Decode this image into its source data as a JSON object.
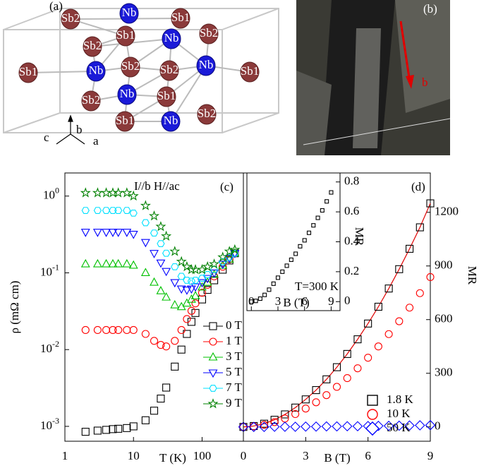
{
  "panel_a": {
    "label": "(a)",
    "atoms": [
      "Sb2",
      "Nb",
      "Sb1",
      "Sb1",
      "Sb2",
      "Nb",
      "Sb2",
      "Sb1",
      "Nb",
      "Sb2",
      "Sb2",
      "Nb",
      "Sb1",
      "Sb2",
      "Nb",
      "Sb1",
      "Sb1",
      "Nb",
      "Sb2"
    ],
    "axes": [
      "c",
      "b",
      "a"
    ]
  },
  "panel_b": {
    "label": "(b)",
    "arrow_label": "b"
  },
  "chart_data": [
    {
      "type": "scatter",
      "xlabel": "T (K)",
      "ylabel": "ρ (mΩ cm)",
      "xscale": "log",
      "yscale": "log",
      "legend": "center right",
      "annotations": [
        "I//b H//ac",
        "(c)"
      ],
      "xlim": [
        1,
        400
      ],
      "xticks": [
        1,
        10,
        100
      ],
      "ylim": [
        0.00064,
        2
      ],
      "yticks": [
        {
          "value": 1,
          "label": "10^0"
        },
        {
          "value": 0.1,
          "label": "10^-1"
        },
        {
          "value": 0.01,
          "label": "10^-2"
        },
        {
          "value": 0.001,
          "label": "10^-3"
        }
      ],
      "x": [
        2,
        3,
        4,
        5,
        6,
        8,
        10,
        15,
        20,
        25,
        30,
        40,
        50,
        60,
        70,
        80,
        100,
        120,
        150,
        200,
        250,
        300
      ],
      "series": [
        {
          "name": "0 T",
          "color": "#000000",
          "marker": "square",
          "values": [
            0.00085,
            0.00088,
            0.0009,
            0.00092,
            0.00093,
            0.00095,
            0.001,
            0.0012,
            0.0016,
            0.0023,
            0.0032,
            0.006,
            0.01,
            0.016,
            0.023,
            0.03,
            0.045,
            0.06,
            0.08,
            0.11,
            0.145,
            0.18
          ]
        },
        {
          "name": "1 T",
          "color": "#ff0000",
          "marker": "circle",
          "values": [
            0.018,
            0.018,
            0.018,
            0.018,
            0.018,
            0.018,
            0.018,
            0.016,
            0.013,
            0.0115,
            0.011,
            0.013,
            0.018,
            0.025,
            0.032,
            0.04,
            0.055,
            0.07,
            0.09,
            0.12,
            0.15,
            0.18
          ]
        },
        {
          "name": "3 T",
          "color": "#00c000",
          "marker": "triangle",
          "values": [
            0.13,
            0.13,
            0.13,
            0.13,
            0.13,
            0.13,
            0.125,
            0.1,
            0.075,
            0.058,
            0.048,
            0.038,
            0.036,
            0.04,
            0.045,
            0.05,
            0.065,
            0.075,
            0.095,
            0.125,
            0.15,
            0.18
          ]
        },
        {
          "name": "5 T",
          "color": "#0000ff",
          "marker": "tri-down",
          "values": [
            0.34,
            0.34,
            0.34,
            0.34,
            0.34,
            0.34,
            0.32,
            0.25,
            0.18,
            0.135,
            0.105,
            0.075,
            0.062,
            0.06,
            0.062,
            0.066,
            0.075,
            0.085,
            0.1,
            0.13,
            0.155,
            0.18
          ]
        },
        {
          "name": "7 T",
          "color": "#00e0ff",
          "marker": "hexagon",
          "values": [
            0.65,
            0.65,
            0.65,
            0.65,
            0.65,
            0.65,
            0.6,
            0.45,
            0.33,
            0.24,
            0.18,
            0.12,
            0.09,
            0.08,
            0.078,
            0.08,
            0.085,
            0.095,
            0.11,
            0.14,
            0.16,
            0.18
          ]
        },
        {
          "name": "9 T",
          "color": "#008000",
          "marker": "star",
          "values": [
            1.1,
            1.1,
            1.1,
            1.1,
            1.1,
            1.1,
            1.0,
            0.75,
            0.55,
            0.4,
            0.3,
            0.19,
            0.14,
            0.12,
            0.11,
            0.11,
            0.11,
            0.12,
            0.13,
            0.16,
            0.19,
            0.2
          ]
        }
      ]
    },
    {
      "type": "scatter",
      "xlabel": "B (T)",
      "ylabel": "MR",
      "y_axis_side": "right",
      "legend": "lower right",
      "annotations": [
        "(d)"
      ],
      "xlim": [
        0,
        9
      ],
      "xticks": [
        0,
        3,
        6,
        9
      ],
      "ylim": [
        -80,
        1420
      ],
      "yticks": [
        0,
        300,
        600,
        900,
        1200
      ],
      "x": [
        0,
        0.5,
        1,
        1.5,
        2,
        2.5,
        3,
        3.5,
        4,
        4.5,
        5,
        5.5,
        6,
        6.5,
        7,
        7.5,
        8,
        8.5,
        9
      ],
      "series": [
        {
          "name": "1.8 K",
          "color": "#000000",
          "marker": "square",
          "line_color": "#e00000",
          "values": [
            0,
            5,
            18,
            40,
            70,
            108,
            154,
            206,
            266,
            334,
            408,
            490,
            578,
            672,
            774,
            882,
            996,
            1116,
            1250
          ]
        },
        {
          "name": "10 K",
          "color": "#ff0000",
          "marker": "circle",
          "values": [
            0,
            3,
            12,
            27,
            47,
            72,
            103,
            138,
            178,
            224,
            273,
            328,
            387,
            450,
            519,
            591,
            667,
            748,
            838
          ]
        },
        {
          "name": "50 K",
          "color": "#0000ff",
          "marker": "diamond",
          "values": [
            0,
            0,
            0,
            1,
            1,
            1,
            2,
            2,
            3,
            3,
            4,
            4,
            5,
            6,
            6,
            7,
            8,
            9,
            10
          ]
        }
      ]
    },
    {
      "type": "scatter",
      "xlabel": "B (T)",
      "ylabel": "MR",
      "y_axis_side": "right",
      "annotations": [
        "T=300 K"
      ],
      "xlim": [
        -0.5,
        10
      ],
      "xticks": [
        0,
        3,
        6,
        9
      ],
      "ylim": [
        -0.06,
        0.86
      ],
      "yticks": [
        0.0,
        0.2,
        0.4,
        0.6,
        0.8
      ],
      "x": [
        0,
        0.5,
        1,
        1.5,
        2,
        2.5,
        3,
        3.5,
        4,
        4.5,
        5,
        5.5,
        6,
        6.5,
        7,
        7.5,
        8,
        8.5,
        9
      ],
      "series": [
        {
          "name": "T=300 K",
          "color": "#000000",
          "marker": "square",
          "values": [
            0,
            0.005,
            0.02,
            0.045,
            0.08,
            0.12,
            0.16,
            0.2,
            0.24,
            0.28,
            0.32,
            0.37,
            0.41,
            0.46,
            0.51,
            0.56,
            0.61,
            0.67,
            0.73
          ]
        }
      ]
    }
  ]
}
